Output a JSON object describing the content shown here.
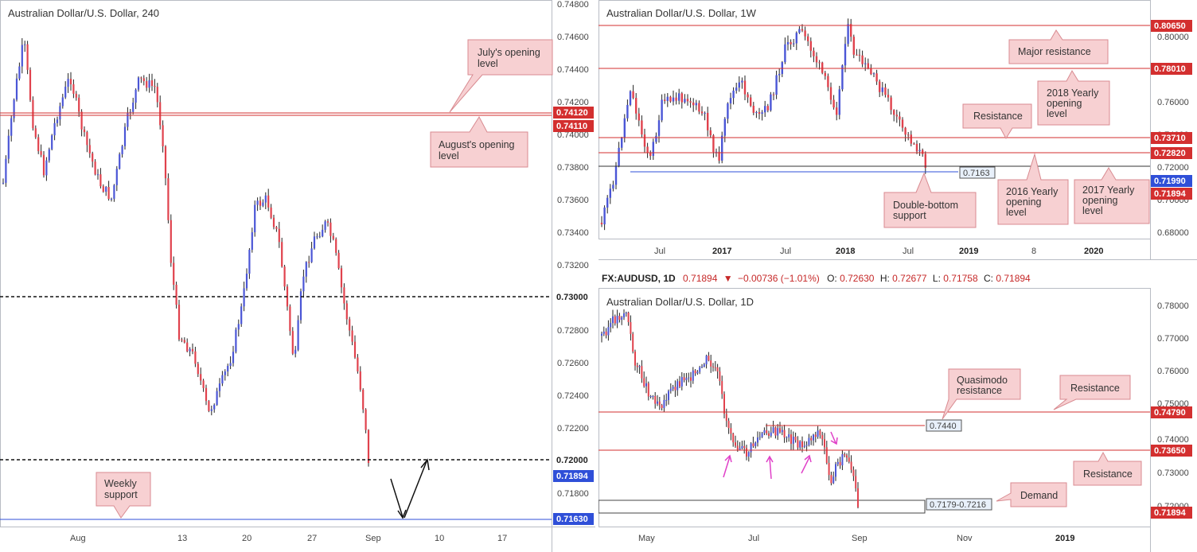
{
  "colors": {
    "bull": "#4b56d6",
    "bear": "#e0424d",
    "red_line": "#d32f2f",
    "blue_line": "#2f4fd8",
    "annotation": "#f7d0d2",
    "arrow_pink": "#e040c8"
  },
  "panel_h4": {
    "title": "Australian Dollar/U.S. Dollar, 240",
    "price_ticks": [
      "0.74800",
      "0.74600",
      "0.74400",
      "0.74200",
      "0.74000",
      "0.73800",
      "0.73600",
      "0.73400",
      "0.73200",
      "0.72800",
      "0.72600",
      "0.72400",
      "0.72200",
      "0.71800"
    ],
    "time_ticks": [
      "Aug",
      "13",
      "20",
      "27",
      "Sep",
      "10",
      "17"
    ],
    "tags": {
      "july": "0.74120",
      "august": "0.74110",
      "r730": "0.73000",
      "r720": "0.72000",
      "last": "0.71894",
      "weekly": "0.71630"
    },
    "annotations": {
      "july_open": [
        "July's opening",
        "level"
      ],
      "aug_open": [
        "August's opening",
        "level"
      ],
      "weekly_support": [
        "Weekly",
        "support"
      ]
    }
  },
  "panel_w": {
    "title": "Australian Dollar/U.S. Dollar, 1W",
    "price_ticks": [
      "0.80000",
      "0.76000",
      "0.74000",
      "0.72000",
      "0.70000",
      "0.68000"
    ],
    "time_ticks": [
      "Jul",
      "2017",
      "Jul",
      "2018",
      "Jul",
      "2019",
      "8",
      "2020"
    ],
    "tags": {
      "t1": "0.80650",
      "t2": "0.78010",
      "t3": "0.73710",
      "t4": "0.72820",
      "t5": "0.71990",
      "t6": "0.71894"
    },
    "level_label": "0.7163",
    "annotations": {
      "major": "Major resistance",
      "yearly2018": [
        "2018 Yearly",
        "opening",
        "level"
      ],
      "resistance": "Resistance",
      "double": [
        "Double-bottom",
        "support"
      ],
      "yearly2016": [
        "2016 Yearly",
        "opening",
        "level"
      ],
      "yearly2017": [
        "2017 Yearly",
        "opening",
        "level"
      ]
    }
  },
  "info_bar": {
    "symbol": "FX:AUDUSD, 1D",
    "price": "0.71894",
    "change": "−0.00736 (−1.01%)",
    "o_label": "O:",
    "o": "0.72630",
    "h_label": "H:",
    "h": "0.72677",
    "l_label": "L:",
    "l": "0.71758",
    "c_label": "C:",
    "c": "0.71894"
  },
  "panel_d": {
    "title": "Australian Dollar/U.S. Dollar, 1D",
    "price_ticks": [
      "0.78000",
      "0.77000",
      "0.76000",
      "0.75000",
      "0.74000",
      "0.73000",
      "0.72000"
    ],
    "time_ticks": [
      "May",
      "Jul",
      "Sep",
      "Nov",
      "2019"
    ],
    "tags": {
      "t1": "0.74790",
      "t2": "0.73650",
      "t3": "0.71894"
    },
    "level_label": "0.7440",
    "demand_label": "0.7179-0.7216",
    "annotations": {
      "qm": [
        "Quasimodo",
        "resistance"
      ],
      "resistance1": "Resistance",
      "resistance2": "Resistance",
      "demand": "Demand"
    }
  }
}
